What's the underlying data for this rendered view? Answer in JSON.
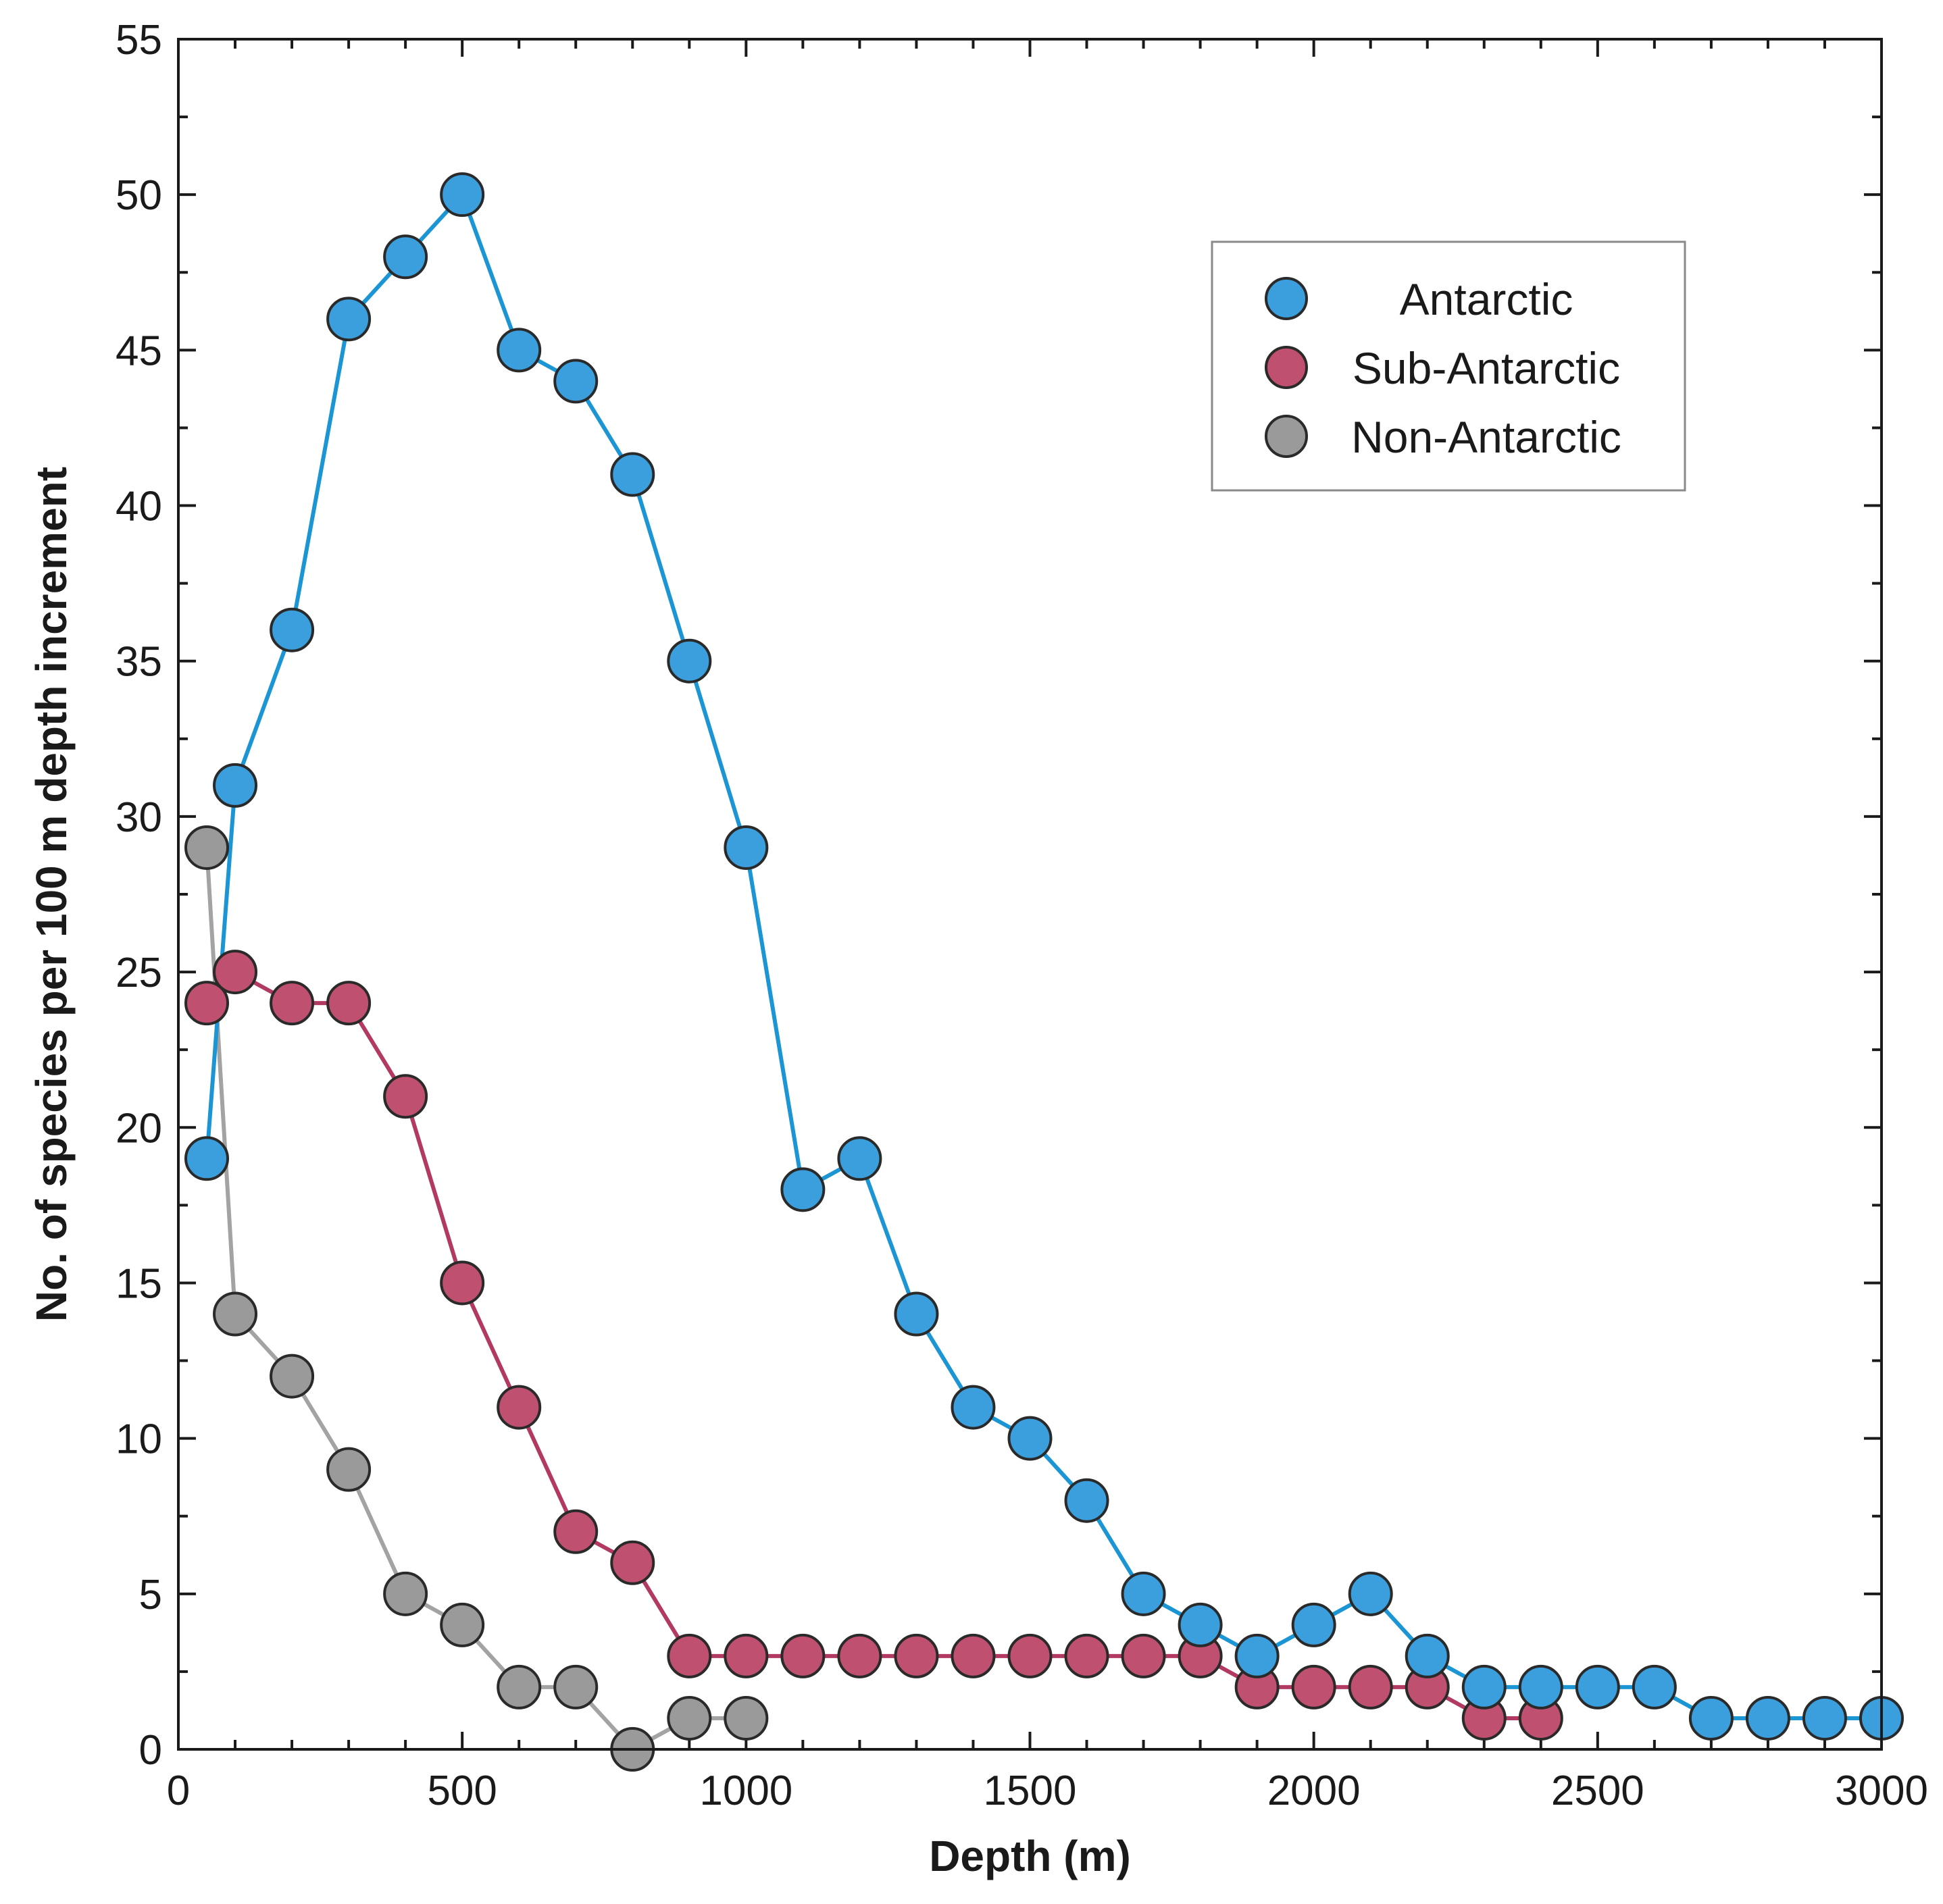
{
  "chart_data": {
    "type": "line",
    "title": "",
    "xlabel": "Depth (m)",
    "ylabel": "No. of species per 100 m depth increment",
    "xlim": [
      0,
      3000
    ],
    "ylim": [
      0,
      55
    ],
    "x_ticks": [
      0,
      500,
      1000,
      1500,
      2000,
      2500,
      3000
    ],
    "y_ticks": [
      0,
      5,
      10,
      15,
      20,
      25,
      30,
      35,
      40,
      45,
      50,
      55
    ],
    "grid": false,
    "legend_position": "top-right",
    "series": [
      {
        "name": "Antarctic",
        "color": "#1b95d3",
        "marker_color": "#3a9fdc",
        "points": [
          [
            50,
            19
          ],
          [
            100,
            31
          ],
          [
            200,
            36
          ],
          [
            300,
            46
          ],
          [
            400,
            48
          ],
          [
            500,
            50
          ],
          [
            600,
            45
          ],
          [
            700,
            44
          ],
          [
            800,
            41
          ],
          [
            900,
            35
          ],
          [
            1000,
            29
          ],
          [
            1100,
            18
          ],
          [
            1200,
            19
          ],
          [
            1300,
            14
          ],
          [
            1400,
            11
          ],
          [
            1500,
            10
          ],
          [
            1600,
            8
          ],
          [
            1700,
            5
          ],
          [
            1800,
            4
          ],
          [
            1900,
            3
          ],
          [
            2000,
            4
          ],
          [
            2100,
            5
          ],
          [
            2200,
            3
          ],
          [
            2300,
            2
          ],
          [
            2400,
            2
          ],
          [
            2500,
            2
          ],
          [
            2600,
            2
          ],
          [
            2700,
            1
          ],
          [
            2800,
            1
          ],
          [
            2900,
            1
          ],
          [
            3000,
            1
          ]
        ]
      },
      {
        "name": "Sub-Antarctic",
        "color": "#b23a62",
        "marker_color": "#c0506f",
        "points": [
          [
            50,
            24
          ],
          [
            100,
            25
          ],
          [
            200,
            24
          ],
          [
            300,
            24
          ],
          [
            400,
            21
          ],
          [
            500,
            15
          ],
          [
            600,
            11
          ],
          [
            700,
            7
          ],
          [
            800,
            6
          ],
          [
            900,
            3
          ],
          [
            1000,
            3
          ],
          [
            1100,
            3
          ],
          [
            1200,
            3
          ],
          [
            1300,
            3
          ],
          [
            1400,
            3
          ],
          [
            1500,
            3
          ],
          [
            1600,
            3
          ],
          [
            1700,
            3
          ],
          [
            1800,
            3
          ],
          [
            1900,
            2
          ],
          [
            2000,
            2
          ],
          [
            2100,
            2
          ],
          [
            2200,
            2
          ],
          [
            2300,
            1
          ],
          [
            2400,
            1
          ]
        ]
      },
      {
        "name": "Non-Antarctic",
        "color": "#a3a3a3",
        "marker_color": "#9a9a9a",
        "points": [
          [
            50,
            29
          ],
          [
            100,
            14
          ],
          [
            200,
            12
          ],
          [
            300,
            9
          ],
          [
            400,
            5
          ],
          [
            500,
            4
          ],
          [
            600,
            2
          ],
          [
            700,
            2
          ],
          [
            800,
            0
          ],
          [
            900,
            1
          ],
          [
            1000,
            1
          ]
        ]
      }
    ]
  }
}
